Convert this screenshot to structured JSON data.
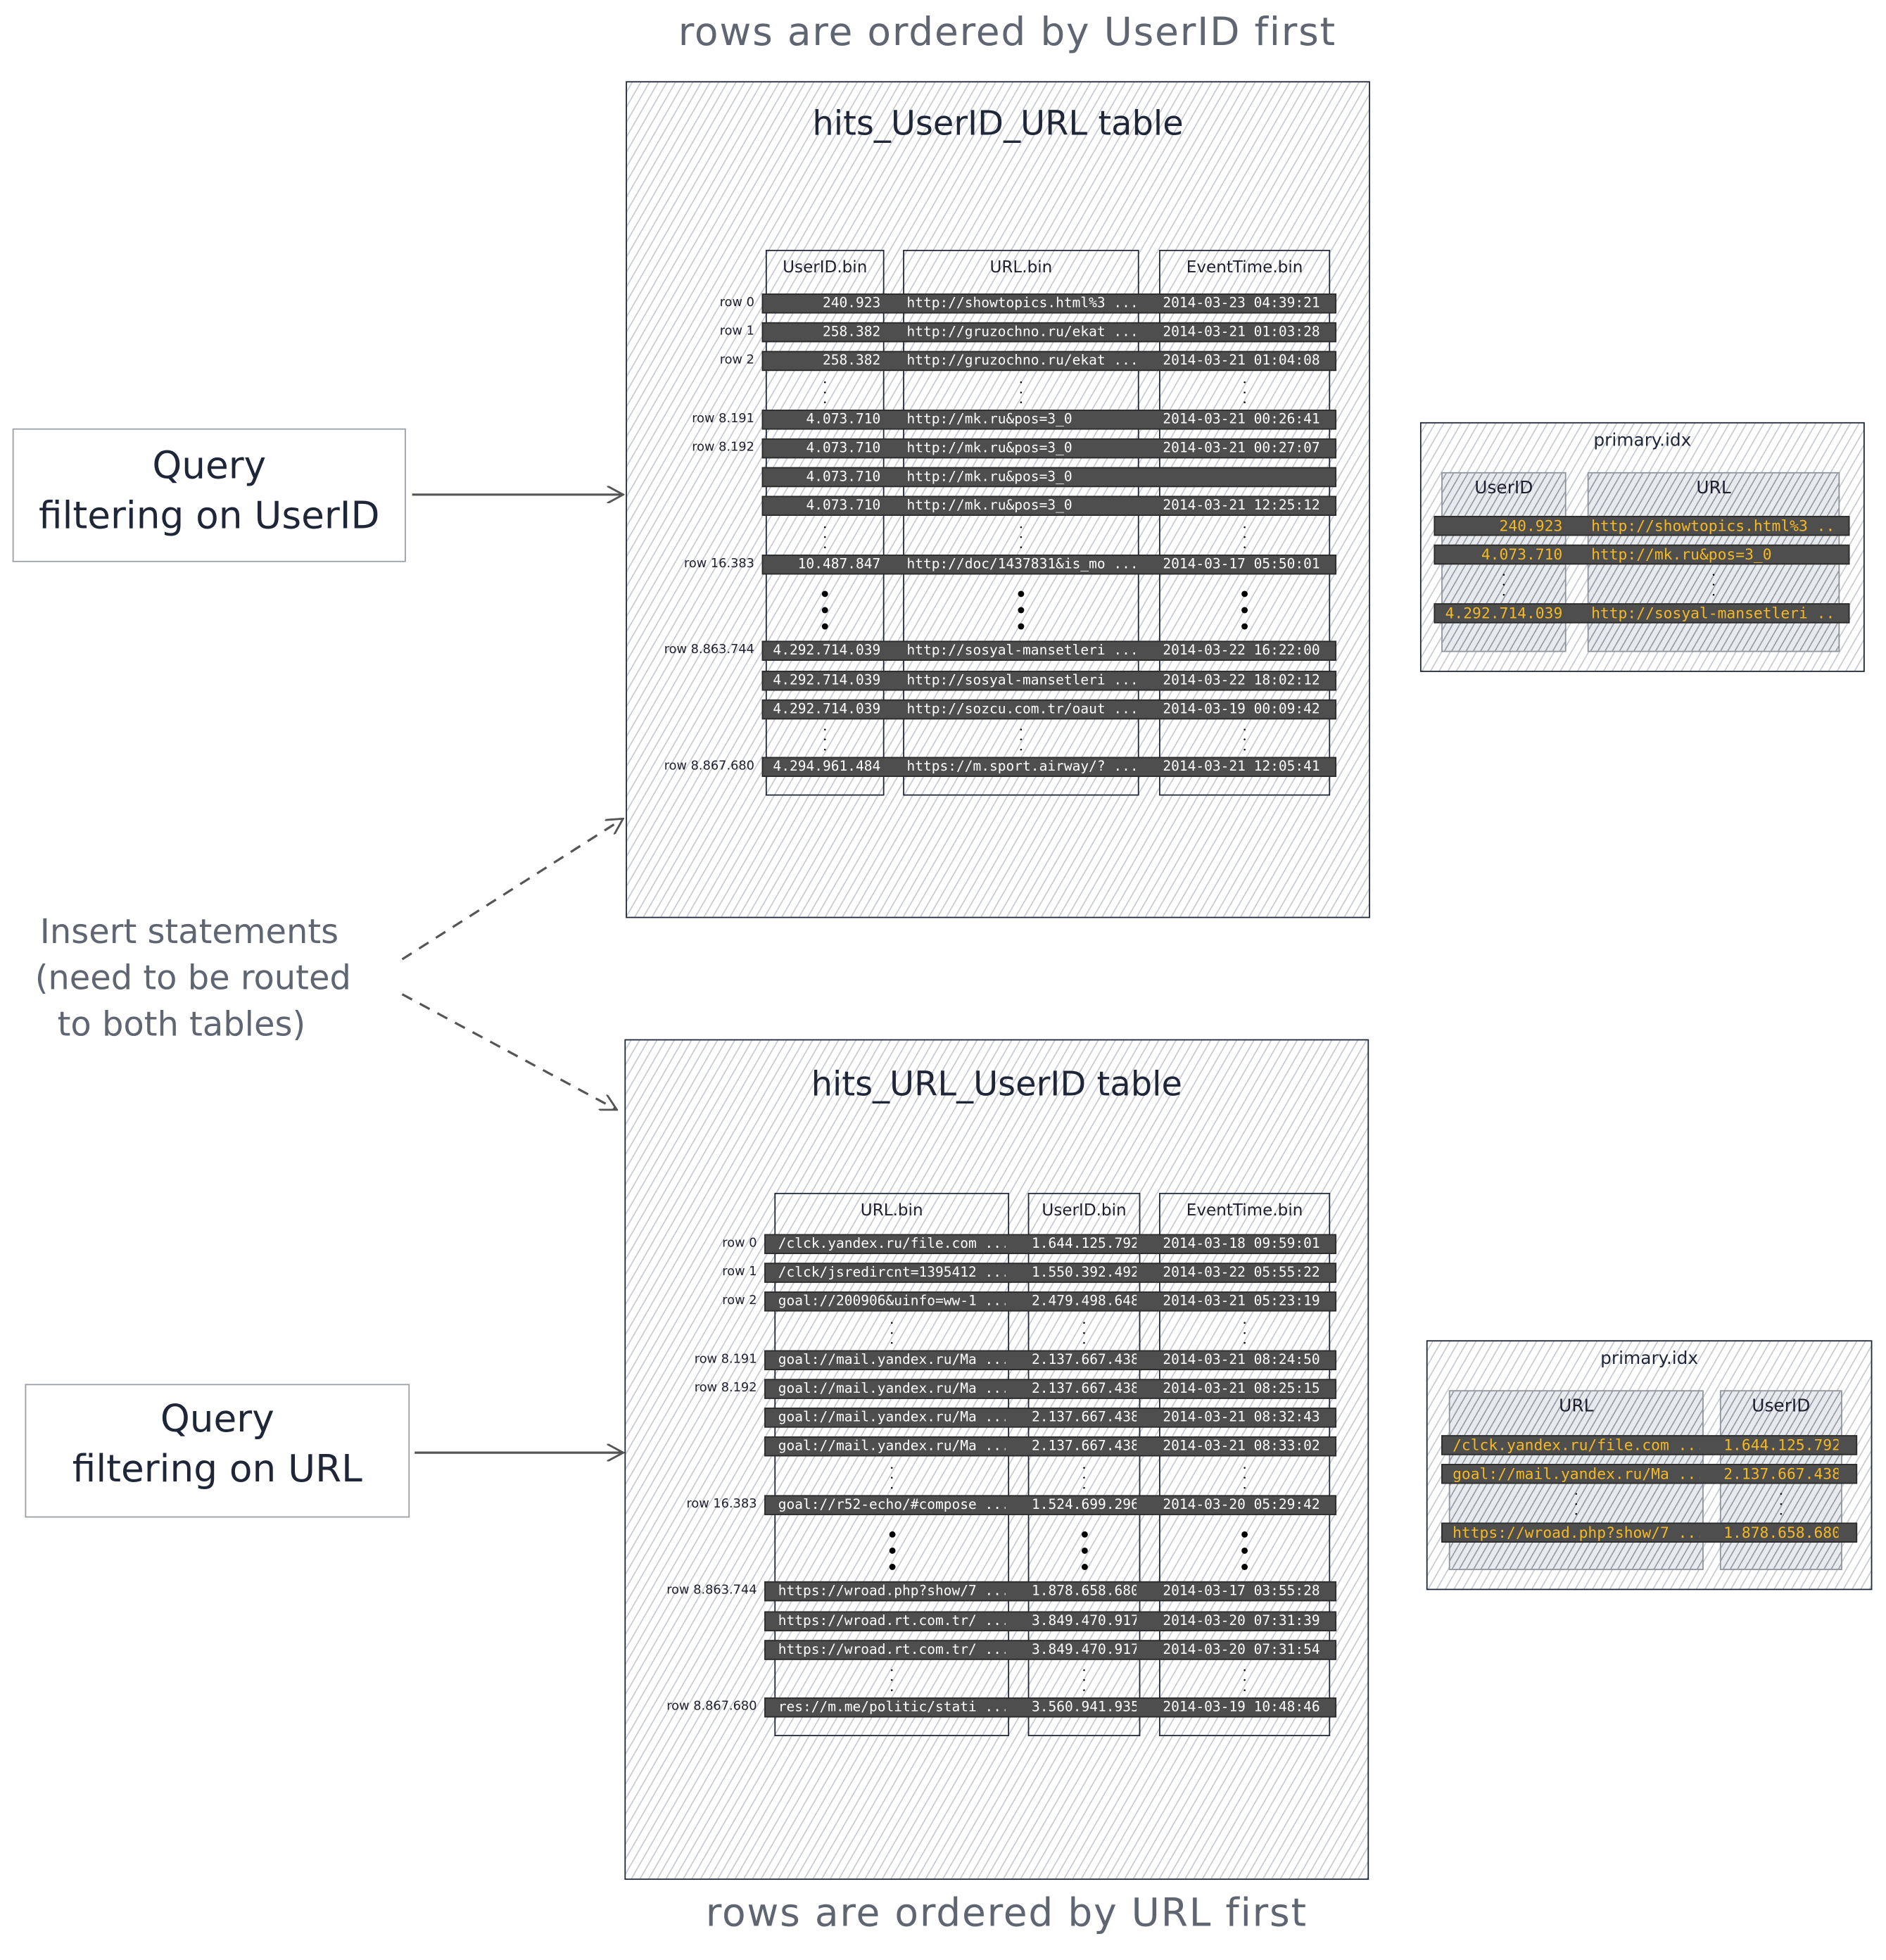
{
  "top_caption": "rows are ordered by UserID first",
  "bottom_caption": "rows are ordered by URL first",
  "query_userid": {
    "line1": "Query",
    "line2": "filtering on UserID"
  },
  "query_url": {
    "line1": "Query",
    "line2": "filtering on URL"
  },
  "insert_note": {
    "line1": "Insert statements",
    "line2": "(need to be routed",
    "line3": "to both tables)"
  },
  "colors": {
    "index_text": "#f5b921",
    "row_bar": "#4e4e4e",
    "caption": "#5f6672",
    "ink": "#1e2638"
  },
  "table_userid_url": {
    "title": "hits_UserID_URL table",
    "columns": [
      "UserID.bin",
      "URL.bin",
      "EventTime.bin"
    ],
    "rows": [
      {
        "kind": "row",
        "label": "row 0",
        "cells": [
          "240.923",
          "http://showtopics.html%3 ...",
          "2014-03-23 04:39:21"
        ]
      },
      {
        "kind": "row",
        "label": "row 1",
        "cells": [
          "258.382",
          "http://gruzochno.ru/ekat ...",
          "2014-03-21 01:03:28"
        ]
      },
      {
        "kind": "row",
        "label": "row 2",
        "cells": [
          "258.382",
          "http://gruzochno.ru/ekat ...",
          "2014-03-21 01:04:08"
        ]
      },
      {
        "kind": "dots"
      },
      {
        "kind": "row",
        "label": "row 8.191",
        "cells": [
          "4.073.710",
          "http://mk.ru&pos=3_0",
          "2014-03-21 00:26:41"
        ]
      },
      {
        "kind": "row",
        "label": "row 8.192",
        "cells": [
          "4.073.710",
          "http://mk.ru&pos=3_0",
          "2014-03-21 00:27:07"
        ]
      },
      {
        "kind": "row",
        "label": "",
        "cells": [
          "4.073.710",
          "http://mk.ru&pos=3_0",
          ""
        ]
      },
      {
        "kind": "row",
        "label": "",
        "cells": [
          "4.073.710",
          "http://mk.ru&pos=3_0",
          "2014-03-21 12:25:12"
        ]
      },
      {
        "kind": "dots"
      },
      {
        "kind": "row",
        "label": "row 16.383",
        "cells": [
          "10.487.847",
          "http://doc/1437831&is_mo ...",
          "2014-03-17 05:50:01"
        ]
      },
      {
        "kind": "bigdots"
      },
      {
        "kind": "row",
        "label": "row 8.863.744",
        "cells": [
          "4.292.714.039",
          "http://sosyal-mansetleri ...",
          "2014-03-22 16:22:00"
        ]
      },
      {
        "kind": "row",
        "label": "",
        "cells": [
          "4.292.714.039",
          "http://sosyal-mansetleri ...",
          "2014-03-22 18:02:12"
        ]
      },
      {
        "kind": "row",
        "label": "",
        "cells": [
          "4.292.714.039",
          "http://sozcu.com.tr/oaut ...",
          "2014-03-19 00:09:42"
        ]
      },
      {
        "kind": "dots"
      },
      {
        "kind": "row",
        "label": "row 8.867.680",
        "cells": [
          "4.294.961.484",
          "https://m.sport.airway/? ...",
          "2014-03-21 12:05:41"
        ]
      }
    ]
  },
  "index_userid_url": {
    "title": "primary.idx",
    "columns": [
      "UserID",
      "URL"
    ],
    "rows": [
      {
        "kind": "row",
        "cells": [
          "240.923",
          "http://showtopics.html%3 ..."
        ]
      },
      {
        "kind": "row",
        "cells": [
          "4.073.710",
          "http://mk.ru&pos=3_0"
        ]
      },
      {
        "kind": "dots"
      },
      {
        "kind": "row",
        "cells": [
          "4.292.714.039",
          "http://sosyal-mansetleri ..."
        ]
      }
    ]
  },
  "table_url_userid": {
    "title": "hits_URL_UserID table",
    "columns": [
      "URL.bin",
      "UserID.bin",
      "EventTime.bin"
    ],
    "rows": [
      {
        "kind": "row",
        "label": "row 0",
        "cells": [
          "/clck.yandex.ru/file.com ...",
          "1.644.125.792",
          "2014-03-18 09:59:01"
        ]
      },
      {
        "kind": "row",
        "label": "row 1",
        "cells": [
          "/clck/jsredircnt=1395412 ...",
          "1.550.392.492",
          "2014-03-22 05:55:22"
        ]
      },
      {
        "kind": "row",
        "label": "row 2",
        "cells": [
          "goal://200906&uinfo=ww-1 ...",
          "2.479.498.648",
          "2014-03-21 05:23:19"
        ]
      },
      {
        "kind": "dots"
      },
      {
        "kind": "row",
        "label": "row 8.191",
        "cells": [
          "goal://mail.yandex.ru/Ma ...",
          "2.137.667.438",
          "2014-03-21 08:24:50"
        ]
      },
      {
        "kind": "row",
        "label": "row 8.192",
        "cells": [
          "goal://mail.yandex.ru/Ma ...",
          "2.137.667.438",
          "2014-03-21 08:25:15"
        ]
      },
      {
        "kind": "row",
        "label": "",
        "cells": [
          "goal://mail.yandex.ru/Ma ...",
          "2.137.667.438",
          "2014-03-21 08:32:43"
        ]
      },
      {
        "kind": "row",
        "label": "",
        "cells": [
          "goal://mail.yandex.ru/Ma ...",
          "2.137.667.438",
          "2014-03-21 08:33:02"
        ]
      },
      {
        "kind": "dots"
      },
      {
        "kind": "row",
        "label": "row 16.383",
        "cells": [
          "goal://r52-echo/#compose ...",
          "1.524.699.296",
          "2014-03-20 05:29:42"
        ]
      },
      {
        "kind": "bigdots"
      },
      {
        "kind": "row",
        "label": "row 8.863.744",
        "cells": [
          "https://wroad.php?show/7 ...",
          "1.878.658.680",
          "2014-03-17 03:55:28"
        ]
      },
      {
        "kind": "row",
        "label": "",
        "cells": [
          "https://wroad.rt.com.tr/ ...",
          "3.849.470.917",
          "2014-03-20 07:31:39"
        ]
      },
      {
        "kind": "row",
        "label": "",
        "cells": [
          "https://wroad.rt.com.tr/ ...",
          "3.849.470.917",
          "2014-03-20 07:31:54"
        ]
      },
      {
        "kind": "dots"
      },
      {
        "kind": "row",
        "label": "row 8.867.680",
        "cells": [
          "res://m.me/politic/stati ...",
          "3.560.941.935",
          "2014-03-19 10:48:46"
        ]
      }
    ]
  },
  "index_url_userid": {
    "title": "primary.idx",
    "columns": [
      "URL",
      "UserID"
    ],
    "rows": [
      {
        "kind": "row",
        "cells": [
          "/clck.yandex.ru/file.com ...",
          "1.644.125.792"
        ]
      },
      {
        "kind": "row",
        "cells": [
          "goal://mail.yandex.ru/Ma ...",
          "2.137.667.438"
        ]
      },
      {
        "kind": "dots"
      },
      {
        "kind": "row",
        "cells": [
          "https://wroad.php?show/7 ...",
          "1.878.658.680"
        ]
      }
    ]
  }
}
